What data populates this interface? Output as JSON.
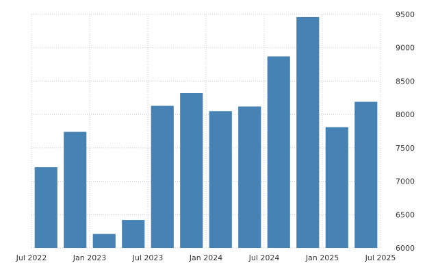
{
  "chart_data": {
    "type": "bar",
    "title": "",
    "xlabel": "",
    "ylabel": "",
    "categories": [
      "Q3 2022",
      "Q4 2022",
      "Q1 2023",
      "Q2 2023",
      "Q3 2023",
      "Q4 2023",
      "Q1 2024",
      "Q2 2024",
      "Q3 2024",
      "Q4 2024",
      "Q1 2025",
      "Q2 2025"
    ],
    "values": [
      7210,
      7740,
      6210,
      6420,
      8130,
      8320,
      8050,
      8120,
      8870,
      9460,
      7810,
      8190
    ],
    "ylim": [
      6000,
      9500
    ],
    "y_ticks": [
      6000,
      6500,
      7000,
      7500,
      8000,
      8500,
      9000,
      9500
    ],
    "x_tick_labels": [
      "Jul 2022",
      "Jan 2023",
      "Jul 2023",
      "Jan 2024",
      "Jul 2024",
      "Jan 2025",
      "Jul 2025"
    ],
    "grid": true,
    "y_axis_side": "right",
    "bar_color": "#4682b4"
  }
}
